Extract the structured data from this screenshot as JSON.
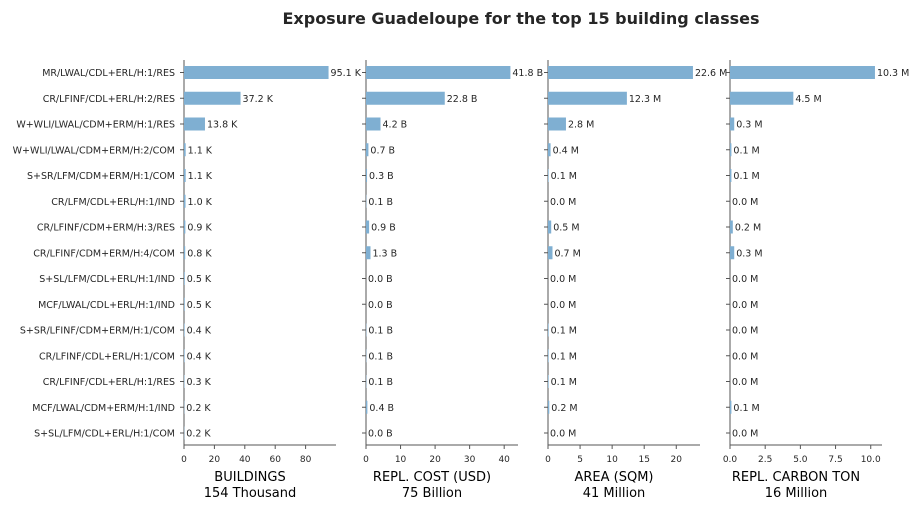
{
  "title": "Exposure Guadeloupe for the top 15 building classes",
  "colors": {
    "bar": "#7fafd2",
    "axis": "#555555",
    "text": "#262626"
  },
  "categories": [
    "MR/LWAL/CDL+ERL/H:1/RES",
    "CR/LFINF/CDL+ERL/H:2/RES",
    "W+WLI/LWAL/CDM+ERM/H:1/RES",
    "W+WLI/LWAL/CDM+ERM/H:2/COM",
    "S+SR/LFM/CDM+ERM/H:1/COM",
    "CR/LFM/CDL+ERL/H:1/IND",
    "CR/LFINF/CDM+ERM/H:3/RES",
    "CR/LFINF/CDM+ERM/H:4/COM",
    "S+SL/LFM/CDL+ERL/H:1/IND",
    "MCF/LWAL/CDL+ERL/H:1/IND",
    "S+SR/LFINF/CDM+ERM/H:1/COM",
    "CR/LFINF/CDL+ERL/H:1/COM",
    "CR/LFINF/CDL+ERL/H:1/RES",
    "MCF/LWAL/CDM+ERM/H:1/IND",
    "S+SL/LFM/CDL+ERL/H:1/COM"
  ],
  "chart_data": [
    {
      "type": "bar",
      "orientation": "horizontal",
      "xlabel": "BUILDINGS",
      "xlabel_sub": "154 Thousand",
      "xlim": [
        0,
        100
      ],
      "xticks": [
        0,
        20,
        40,
        60,
        80
      ],
      "xtick_labels": [
        "0",
        "20",
        "40",
        "60",
        "80"
      ],
      "values": [
        95.1,
        37.2,
        13.8,
        1.1,
        1.1,
        1.0,
        0.9,
        0.8,
        0.5,
        0.5,
        0.4,
        0.4,
        0.3,
        0.2,
        0.2
      ],
      "labels": [
        "95.1 K",
        "37.2 K",
        "13.8 K",
        "1.1 K",
        "1.1 K",
        "1.0 K",
        "0.9 K",
        "0.8 K",
        "0.5 K",
        "0.5 K",
        "0.4 K",
        "0.4 K",
        "0.3 K",
        "0.2 K",
        "0.2 K"
      ]
    },
    {
      "type": "bar",
      "orientation": "horizontal",
      "xlabel": "REPL. COST (USD)",
      "xlabel_sub": "75 Billion",
      "xlim": [
        0,
        44
      ],
      "xticks": [
        0,
        10,
        20,
        30,
        40
      ],
      "xtick_labels": [
        "0",
        "10",
        "20",
        "30",
        "40"
      ],
      "values": [
        41.8,
        22.8,
        4.2,
        0.7,
        0.3,
        0.1,
        0.9,
        1.3,
        0.0,
        0.0,
        0.1,
        0.1,
        0.1,
        0.4,
        0.0
      ],
      "labels": [
        "41.8 B",
        "22.8 B",
        "4.2 B",
        "0.7 B",
        "0.3 B",
        "0.1 B",
        "0.9 B",
        "1.3 B",
        "0.0 B",
        "0.0 B",
        "0.1 B",
        "0.1 B",
        "0.1 B",
        "0.4 B",
        "0.0 B"
      ]
    },
    {
      "type": "bar",
      "orientation": "horizontal",
      "xlabel": "AREA (SQM)",
      "xlabel_sub": "41 Million",
      "xlim": [
        0,
        23.7
      ],
      "xticks": [
        0,
        5,
        10,
        15,
        20
      ],
      "xtick_labels": [
        "0",
        "5",
        "10",
        "15",
        "20"
      ],
      "values": [
        22.6,
        12.3,
        2.8,
        0.4,
        0.1,
        0.0,
        0.5,
        0.7,
        0.0,
        0.0,
        0.1,
        0.1,
        0.1,
        0.2,
        0.0
      ],
      "labels": [
        "22.6 M",
        "12.3 M",
        "2.8 M",
        "0.4 M",
        "0.1 M",
        "0.0 M",
        "0.5 M",
        "0.7 M",
        "0.0 M",
        "0.0 M",
        "0.1 M",
        "0.1 M",
        "0.1 M",
        "0.2 M",
        "0.0 M"
      ]
    },
    {
      "type": "bar",
      "orientation": "horizontal",
      "xlabel": "REPL. CARBON TON",
      "xlabel_sub": "16 Million",
      "xlim": [
        0,
        10.8
      ],
      "xticks": [
        0,
        2.5,
        5,
        7.5,
        10
      ],
      "xtick_labels": [
        "0.0",
        "2.5",
        "5.0",
        "7.5",
        "10.0"
      ],
      "values": [
        10.3,
        4.5,
        0.3,
        0.1,
        0.1,
        0.0,
        0.2,
        0.3,
        0.0,
        0.0,
        0.0,
        0.0,
        0.0,
        0.1,
        0.0
      ],
      "labels": [
        "10.3 M",
        "4.5 M",
        "0.3 M",
        "0.1 M",
        "0.1 M",
        "0.0 M",
        "0.2 M",
        "0.3 M",
        "0.0 M",
        "0.0 M",
        "0.0 M",
        "0.0 M",
        "0.0 M",
        "0.1 M",
        "0.0 M"
      ]
    }
  ]
}
